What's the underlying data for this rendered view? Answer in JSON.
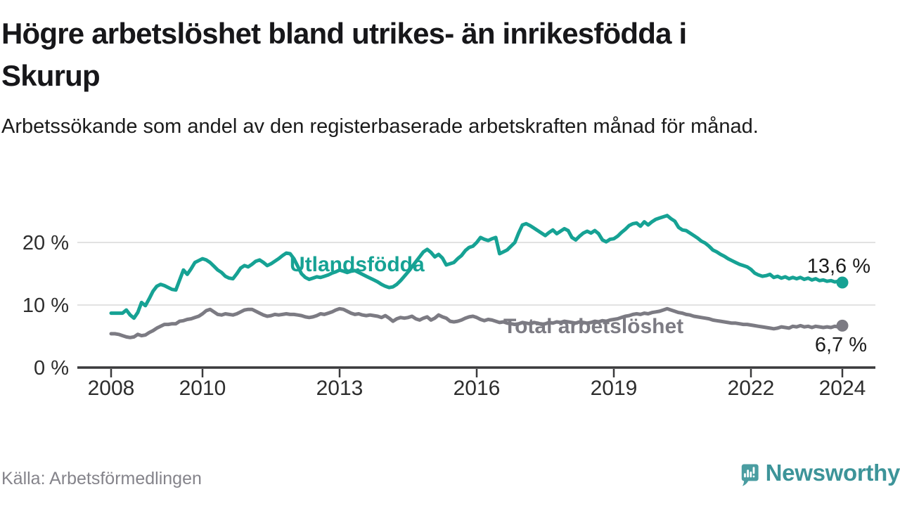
{
  "header": {
    "title_lines": [
      "Högre arbetslöshet bland utrikes- än inrikesfödda i",
      "Skurup"
    ],
    "subtitle": "Arbetssökande som andel av den registerbaserade arbetskraften månad för månad."
  },
  "footer": {
    "source": "Källa: Arbetsförmedlingen",
    "brand": "Newsworthy"
  },
  "colors": {
    "series_teal": "#16a294",
    "series_gray": "#7c7b83",
    "grid": "#d9d9d9",
    "axis": "#3a3a3c",
    "tick_label": "#2d2d2d",
    "value_label": "#1c1c1c",
    "brand_teal": "#3d9499",
    "brand_icon": "#4a9da1"
  },
  "chart_data": {
    "type": "line",
    "title": "Högre arbetslöshet bland utrikes- än inrikesfödda i Skurup",
    "subtitle": "Arbetssökande som andel av den registerbaserade arbetskraften månad för månad.",
    "x_unit": "month",
    "x_start": "2008-01",
    "x_end": "2024-01",
    "x_tick_years": [
      2008,
      2010,
      2013,
      2016,
      2019,
      2022,
      2024
    ],
    "y_ticks": [
      {
        "value": 0,
        "label": "0 %"
      },
      {
        "value": 10,
        "label": "10 %"
      },
      {
        "value": 20,
        "label": "20 %"
      }
    ],
    "ylim": [
      0,
      26
    ],
    "grid": "horizontal-only",
    "legend": "inline-labels",
    "series": [
      {
        "name": "Utlandsfödda",
        "color": "#16a294",
        "end_label": "13,6 %",
        "end_value": 13.6,
        "values": [
          8.7,
          8.7,
          8.7,
          8.7,
          9.2,
          8.4,
          7.9,
          8.8,
          10.4,
          9.9,
          11.0,
          12.2,
          13.0,
          13.3,
          13.1,
          12.8,
          12.5,
          12.4,
          14.0,
          15.6,
          14.9,
          15.8,
          16.8,
          17.1,
          17.4,
          17.2,
          16.8,
          16.2,
          15.6,
          15.2,
          14.6,
          14.3,
          14.2,
          15.0,
          15.9,
          16.3,
          16.1,
          16.5,
          17.0,
          17.2,
          16.8,
          16.3,
          16.6,
          17.0,
          17.4,
          17.9,
          18.3,
          18.2,
          17.4,
          16.2,
          15.0,
          14.4,
          14.1,
          14.3,
          14.5,
          14.4,
          14.6,
          14.8,
          15.1,
          15.3,
          15.6,
          15.4,
          15.2,
          15.4,
          15.5,
          15.2,
          14.9,
          14.6,
          14.3,
          14.0,
          13.7,
          13.3,
          13.0,
          12.8,
          12.9,
          13.3,
          13.9,
          14.6,
          15.3,
          16.1,
          16.9,
          17.7,
          18.5,
          18.9,
          18.4,
          17.7,
          18.1,
          17.5,
          16.4,
          16.6,
          16.8,
          17.4,
          17.9,
          18.7,
          19.2,
          19.4,
          20.0,
          20.8,
          20.5,
          20.3,
          20.6,
          20.8,
          18.2,
          18.5,
          18.8,
          19.4,
          20.0,
          21.5,
          22.8,
          23.0,
          22.7,
          22.3,
          21.9,
          21.5,
          21.1,
          21.6,
          22.0,
          21.4,
          21.8,
          22.2,
          21.9,
          20.8,
          20.4,
          21.0,
          21.5,
          21.8,
          21.5,
          21.9,
          21.4,
          20.4,
          20.1,
          20.5,
          20.6,
          21.0,
          21.6,
          22.1,
          22.7,
          23.0,
          23.1,
          22.6,
          23.3,
          22.8,
          23.3,
          23.7,
          23.9,
          24.1,
          24.3,
          23.8,
          23.4,
          22.4,
          22.0,
          21.9,
          21.5,
          21.1,
          20.7,
          20.2,
          19.9,
          19.4,
          18.8,
          18.5,
          18.1,
          17.8,
          17.4,
          17.1,
          16.8,
          16.5,
          16.3,
          16.1,
          15.7,
          15.1,
          14.8,
          14.6,
          14.7,
          14.9,
          14.4,
          14.6,
          14.3,
          14.5,
          14.2,
          14.4,
          14.2,
          14.4,
          14.1,
          14.3,
          14.0,
          14.2,
          13.9,
          14.0,
          13.8,
          13.9,
          13.7,
          13.8,
          13.6
        ]
      },
      {
        "name": "Total arbetslöshet",
        "color": "#7c7b83",
        "end_label": "6,7 %",
        "end_value": 6.7,
        "values": [
          5.4,
          5.4,
          5.3,
          5.1,
          4.9,
          4.8,
          4.9,
          5.3,
          5.1,
          5.2,
          5.6,
          5.9,
          6.3,
          6.6,
          6.9,
          6.9,
          7.0,
          7.0,
          7.4,
          7.5,
          7.7,
          7.8,
          8.0,
          8.2,
          8.6,
          9.1,
          9.3,
          8.9,
          8.5,
          8.4,
          8.6,
          8.5,
          8.4,
          8.6,
          8.9,
          9.2,
          9.3,
          9.3,
          9.0,
          8.7,
          8.4,
          8.2,
          8.3,
          8.5,
          8.4,
          8.5,
          8.6,
          8.5,
          8.5,
          8.4,
          8.3,
          8.1,
          8.0,
          8.1,
          8.3,
          8.6,
          8.5,
          8.7,
          8.9,
          9.2,
          9.4,
          9.3,
          9.0,
          8.7,
          8.5,
          8.6,
          8.4,
          8.3,
          8.4,
          8.3,
          8.2,
          8.0,
          8.3,
          7.9,
          7.4,
          7.8,
          8.0,
          7.9,
          8.0,
          8.2,
          7.8,
          7.6,
          7.9,
          8.1,
          7.6,
          7.9,
          8.4,
          8.1,
          7.9,
          7.4,
          7.3,
          7.4,
          7.6,
          7.9,
          8.1,
          8.2,
          8.0,
          7.7,
          7.5,
          7.7,
          7.6,
          7.4,
          7.2,
          7.3,
          7.1,
          7.0,
          6.9,
          7.0,
          7.2,
          7.1,
          7.0,
          7.2,
          7.1,
          6.9,
          7.0,
          7.2,
          7.1,
          7.3,
          7.2,
          7.4,
          7.3,
          7.2,
          7.1,
          7.3,
          7.2,
          7.1,
          7.2,
          7.4,
          7.3,
          7.5,
          7.4,
          7.6,
          7.7,
          7.8,
          8.0,
          8.2,
          8.3,
          8.5,
          8.6,
          8.5,
          8.7,
          8.6,
          8.8,
          8.9,
          9.0,
          9.2,
          9.4,
          9.2,
          9.0,
          8.8,
          8.7,
          8.5,
          8.4,
          8.2,
          8.1,
          8.0,
          7.9,
          7.8,
          7.6,
          7.5,
          7.4,
          7.3,
          7.2,
          7.1,
          7.1,
          7.0,
          6.9,
          6.9,
          6.8,
          6.7,
          6.6,
          6.5,
          6.4,
          6.3,
          6.2,
          6.3,
          6.5,
          6.4,
          6.3,
          6.6,
          6.5,
          6.7,
          6.5,
          6.6,
          6.4,
          6.6,
          6.5,
          6.4,
          6.5,
          6.4,
          6.6,
          6.5,
          6.7
        ]
      }
    ]
  }
}
